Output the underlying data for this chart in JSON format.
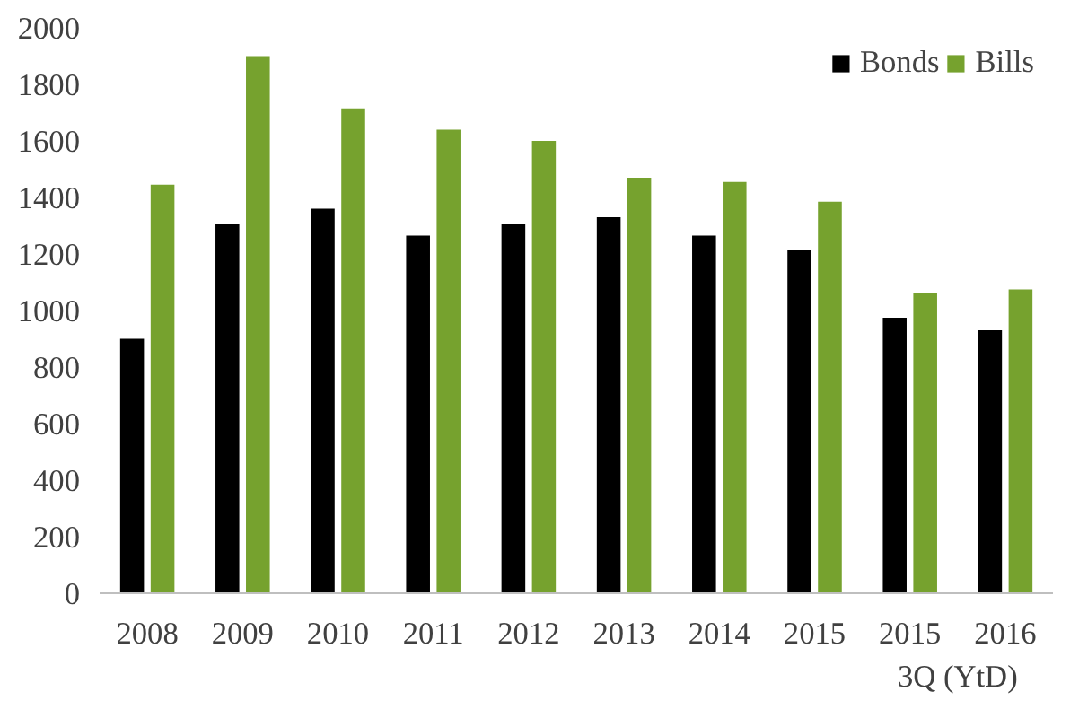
{
  "chart_data": {
    "type": "bar",
    "categories": [
      "2008",
      "2009",
      "2010",
      "2011",
      "2012",
      "2013",
      "2014",
      "2015",
      "2015",
      "2016"
    ],
    "series": [
      {
        "name": "Bonds",
        "color": "#000000",
        "values": [
          900,
          1305,
          1360,
          1265,
          1305,
          1330,
          1265,
          1215,
          975,
          930
        ]
      },
      {
        "name": "Bills",
        "color": "#76a22e",
        "values": [
          1445,
          1900,
          1715,
          1640,
          1600,
          1470,
          1455,
          1385,
          1060,
          1075
        ]
      }
    ],
    "ylim": [
      0,
      2000
    ],
    "yticks": [
      0,
      200,
      400,
      600,
      800,
      1000,
      1200,
      1400,
      1600,
      1800,
      2000
    ],
    "annotations": [
      "3Q (YtD)"
    ],
    "grid": false,
    "legend": "top right"
  }
}
